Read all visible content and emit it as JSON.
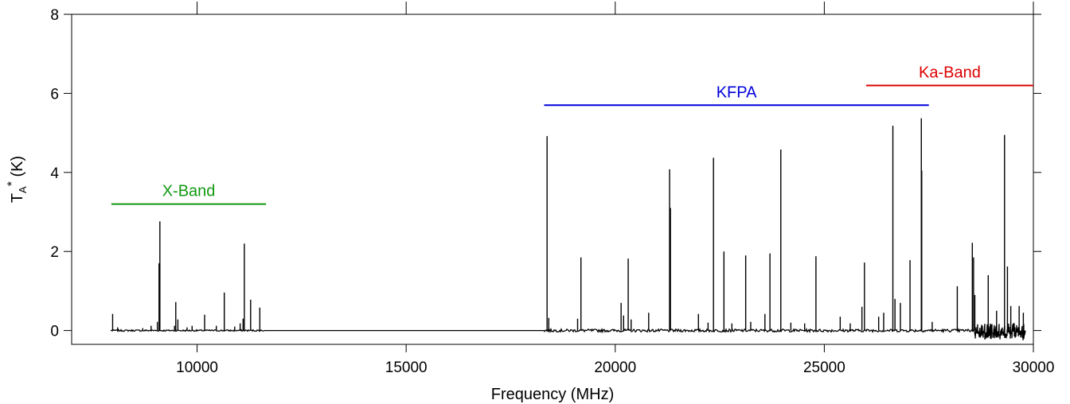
{
  "chart_data": {
    "type": "line",
    "xlabel": "Frequency (MHz)",
    "ylabel": {
      "base": "T",
      "sub": "A",
      "sup": "*",
      "unit": " (K)"
    },
    "xlim": [
      7000,
      30000
    ],
    "ylim": [
      -0.35,
      8.0
    ],
    "xticks": [
      10000,
      15000,
      20000,
      25000,
      30000
    ],
    "xtick_labels": [
      "10000",
      "15000",
      "20000",
      "25000",
      "30000"
    ],
    "yticks": [
      0,
      2,
      4,
      6,
      8
    ],
    "ytick_labels": [
      "0",
      "2",
      "4",
      "6",
      "8"
    ],
    "grid": false,
    "spectrum_segments": [
      [
        7950,
        11600
      ],
      [
        18300,
        29800
      ]
    ],
    "peaks": [
      {
        "x": 7980,
        "y": 0.42
      },
      {
        "x": 8100,
        "y": 0.08
      },
      {
        "x": 8700,
        "y": 0.06
      },
      {
        "x": 8900,
        "y": 0.12
      },
      {
        "x": 9050,
        "y": 0.22
      },
      {
        "x": 9090,
        "y": 1.7
      },
      {
        "x": 9110,
        "y": 2.76
      },
      {
        "x": 9460,
        "y": 0.12
      },
      {
        "x": 9490,
        "y": 0.72
      },
      {
        "x": 9540,
        "y": 0.28
      },
      {
        "x": 9760,
        "y": 0.08
      },
      {
        "x": 9880,
        "y": 0.12
      },
      {
        "x": 10180,
        "y": 0.4
      },
      {
        "x": 10460,
        "y": 0.12
      },
      {
        "x": 10650,
        "y": 0.96
      },
      {
        "x": 10900,
        "y": 0.1
      },
      {
        "x": 11030,
        "y": 0.18
      },
      {
        "x": 11100,
        "y": 0.3
      },
      {
        "x": 11130,
        "y": 2.2
      },
      {
        "x": 11280,
        "y": 0.78
      },
      {
        "x": 11500,
        "y": 0.58
      },
      {
        "x": 18370,
        "y": 4.92
      },
      {
        "x": 18410,
        "y": 0.32
      },
      {
        "x": 19100,
        "y": 0.3
      },
      {
        "x": 19180,
        "y": 1.85
      },
      {
        "x": 20140,
        "y": 0.7
      },
      {
        "x": 20200,
        "y": 0.38
      },
      {
        "x": 20310,
        "y": 1.82
      },
      {
        "x": 20380,
        "y": 0.28
      },
      {
        "x": 20800,
        "y": 0.45
      },
      {
        "x": 21300,
        "y": 4.08
      },
      {
        "x": 21320,
        "y": 3.1
      },
      {
        "x": 21990,
        "y": 0.42
      },
      {
        "x": 22220,
        "y": 0.2
      },
      {
        "x": 22350,
        "y": 4.37
      },
      {
        "x": 22600,
        "y": 2.0
      },
      {
        "x": 22790,
        "y": 0.18
      },
      {
        "x": 23120,
        "y": 1.9
      },
      {
        "x": 23240,
        "y": 0.22
      },
      {
        "x": 23580,
        "y": 0.42
      },
      {
        "x": 23700,
        "y": 1.95
      },
      {
        "x": 23960,
        "y": 4.58
      },
      {
        "x": 24200,
        "y": 0.2
      },
      {
        "x": 24530,
        "y": 0.18
      },
      {
        "x": 24800,
        "y": 1.88
      },
      {
        "x": 25380,
        "y": 0.35
      },
      {
        "x": 25620,
        "y": 0.18
      },
      {
        "x": 25900,
        "y": 0.6
      },
      {
        "x": 25960,
        "y": 1.72
      },
      {
        "x": 26300,
        "y": 0.35
      },
      {
        "x": 26420,
        "y": 0.45
      },
      {
        "x": 26640,
        "y": 5.18
      },
      {
        "x": 26690,
        "y": 0.8
      },
      {
        "x": 26820,
        "y": 0.7
      },
      {
        "x": 27050,
        "y": 1.78
      },
      {
        "x": 27320,
        "y": 5.37
      },
      {
        "x": 27330,
        "y": 4.05
      },
      {
        "x": 27580,
        "y": 0.22
      },
      {
        "x": 28180,
        "y": 1.12
      },
      {
        "x": 28540,
        "y": 2.22
      },
      {
        "x": 28570,
        "y": 1.85
      },
      {
        "x": 28600,
        "y": 0.9
      },
      {
        "x": 28920,
        "y": 1.4
      },
      {
        "x": 29120,
        "y": 0.5
      },
      {
        "x": 29310,
        "y": 4.95
      },
      {
        "x": 29380,
        "y": 1.62
      },
      {
        "x": 29460,
        "y": 0.62
      },
      {
        "x": 29660,
        "y": 0.62
      },
      {
        "x": 29760,
        "y": 0.45
      }
    ],
    "bands": [
      {
        "label": "X-Band",
        "x_start": 7950,
        "x_end": 11650,
        "y": 3.2,
        "color": "#119911"
      },
      {
        "label": "KFPA",
        "x_start": 18300,
        "x_end": 27500,
        "y": 5.7,
        "color": "#0000dd"
      },
      {
        "label": "Ka-Band",
        "x_start": 26000,
        "x_end": 30000,
        "y": 6.2,
        "color": "#dd0000"
      }
    ]
  }
}
